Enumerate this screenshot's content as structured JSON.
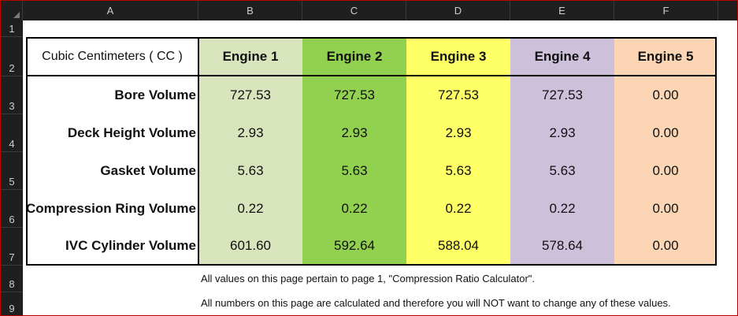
{
  "columns": [
    "A",
    "B",
    "C",
    "D",
    "E",
    "F"
  ],
  "rows": [
    "1",
    "2",
    "3",
    "4",
    "5",
    "6",
    "7",
    "8",
    "9"
  ],
  "table": {
    "corner_label": "Cubic Centimeters ( CC )",
    "engines": [
      "Engine 1",
      "Engine 2",
      "Engine 3",
      "Engine 4",
      "Engine 5"
    ],
    "engine_colors": [
      "#d8e4bc",
      "#92d050",
      "#ffff66",
      "#ccc0da",
      "#fcd5b4"
    ],
    "rows": [
      {
        "label": "Bore Volume",
        "values": [
          "727.53",
          "727.53",
          "727.53",
          "727.53",
          "0.00"
        ]
      },
      {
        "label": "Deck Height Volume",
        "values": [
          "2.93",
          "2.93",
          "2.93",
          "2.93",
          "0.00"
        ]
      },
      {
        "label": "Gasket Volume",
        "values": [
          "5.63",
          "5.63",
          "5.63",
          "5.63",
          "0.00"
        ]
      },
      {
        "label": "Compression Ring Volume",
        "values": [
          "0.22",
          "0.22",
          "0.22",
          "0.22",
          "0.00"
        ]
      },
      {
        "label": "IVC Cylinder Volume",
        "values": [
          "601.60",
          "592.64",
          "588.04",
          "578.64",
          "0.00"
        ]
      }
    ]
  },
  "notes": [
    "All values on this page pertain to page 1, \"Compression Ratio Calculator\".",
    "All numbers on this page are calculated and therefore you will NOT want to change any of these values."
  ]
}
